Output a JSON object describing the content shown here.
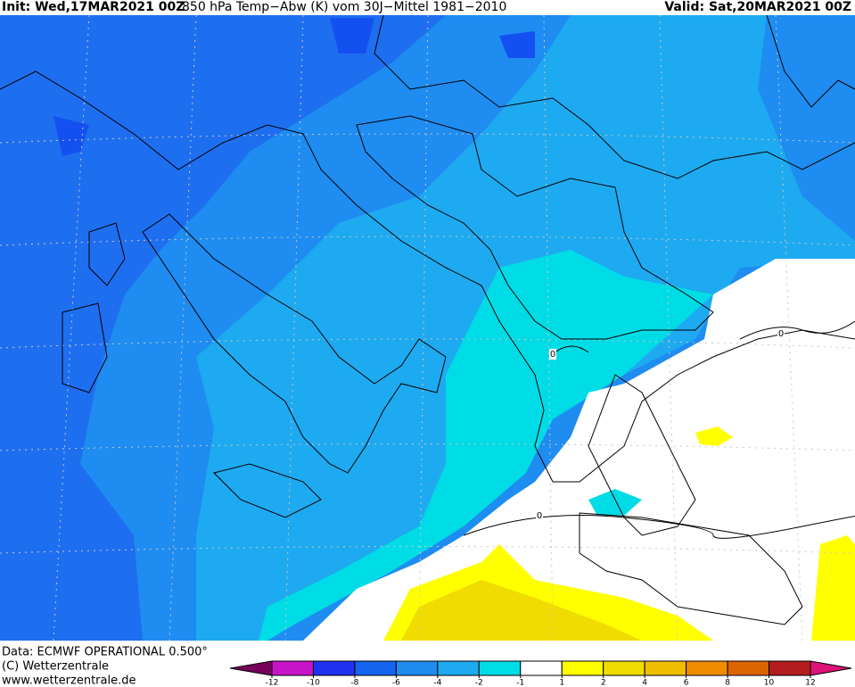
{
  "header": {
    "init": "Init: Wed,17MAR2021 00Z",
    "title": "850 hPa Temp−Abw (K) vom 30J−Mittel 1981−2010",
    "valid": "Valid: Sat,20MAR2021 00Z"
  },
  "footer": {
    "data": "Data: ECMWF OPERATIONAL 0.500°",
    "copyright": "(C) Wetterzentrale",
    "url": "www.wetterzentrale.de"
  },
  "map": {
    "contour_labels": [
      0,
      0,
      0
    ]
  },
  "legend": {
    "ticks": [
      -12,
      -10,
      -8,
      -6,
      -4,
      -2,
      -1,
      1,
      2,
      4,
      6,
      8,
      10,
      12
    ],
    "colors": [
      "#78005a",
      "#c814c8",
      "#1e32f0",
      "#1464f0",
      "#1e8cf0",
      "#1eaaf0",
      "#00dce6",
      "#ffffff",
      "#ffff00",
      "#f0dc00",
      "#f0be00",
      "#f08c00",
      "#dc6400",
      "#b41e1e",
      "#dc1478"
    ]
  }
}
